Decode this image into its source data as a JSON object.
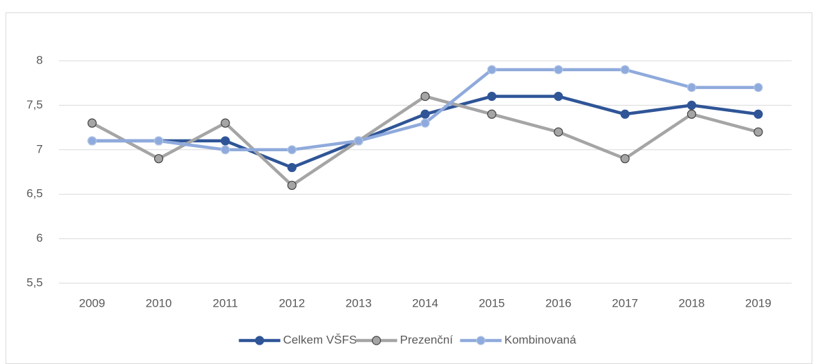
{
  "chart_data": {
    "type": "line",
    "categories": [
      "2009",
      "2010",
      "2011",
      "2012",
      "2013",
      "2014",
      "2015",
      "2016",
      "2017",
      "2018",
      "2019"
    ],
    "series": [
      {
        "name": "Celkem VŠFS",
        "color": "#2f5597",
        "values": [
          7.1,
          7.1,
          7.1,
          6.8,
          7.1,
          7.4,
          7.6,
          7.6,
          7.4,
          7.5,
          7.4
        ]
      },
      {
        "name": "Prezenční",
        "color": "#a5a5a5",
        "values": [
          7.3,
          6.9,
          7.3,
          6.6,
          7.1,
          7.6,
          7.4,
          7.2,
          6.9,
          7.4,
          7.2
        ]
      },
      {
        "name": "Kombinovaná",
        "color": "#8faadc",
        "values": [
          7.1,
          7.1,
          7.0,
          7.0,
          7.1,
          7.3,
          7.9,
          7.9,
          7.9,
          7.7,
          7.7
        ]
      }
    ],
    "ylim": [
      5.5,
      8
    ],
    "yticks": [
      {
        "value": 5.5,
        "label": "5,5"
      },
      6,
      {
        "value": 6.5,
        "label": "6,5"
      },
      7,
      {
        "value": 7.5,
        "label": "7,5"
      },
      8
    ],
    "grid": true,
    "legend": "bottom"
  }
}
